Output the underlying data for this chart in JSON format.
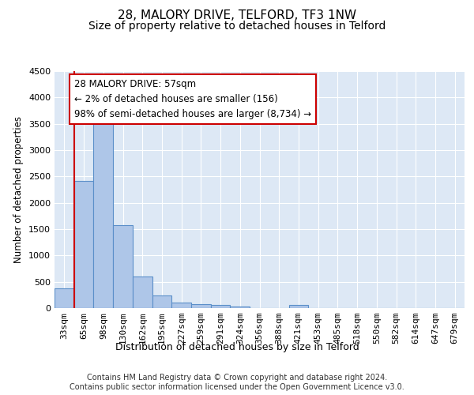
{
  "title_line1": "28, MALORY DRIVE, TELFORD, TF3 1NW",
  "title_line2": "Size of property relative to detached houses in Telford",
  "xlabel": "Distribution of detached houses by size in Telford",
  "ylabel": "Number of detached properties",
  "categories": [
    "33sqm",
    "65sqm",
    "98sqm",
    "130sqm",
    "162sqm",
    "195sqm",
    "227sqm",
    "259sqm",
    "291sqm",
    "324sqm",
    "356sqm",
    "388sqm",
    "421sqm",
    "453sqm",
    "485sqm",
    "518sqm",
    "550sqm",
    "582sqm",
    "614sqm",
    "647sqm",
    "679sqm"
  ],
  "values": [
    370,
    2420,
    3620,
    1580,
    600,
    240,
    110,
    75,
    55,
    30,
    0,
    0,
    60,
    0,
    0,
    0,
    0,
    0,
    0,
    0,
    0
  ],
  "bar_color": "#aec6e8",
  "bar_edge_color": "#5b8fc9",
  "highlight_line_color": "#cc0000",
  "annotation_text": "28 MALORY DRIVE: 57sqm\n← 2% of detached houses are smaller (156)\n98% of semi-detached houses are larger (8,734) →",
  "annotation_box_color": "#cc0000",
  "ylim": [
    0,
    4500
  ],
  "yticks": [
    0,
    500,
    1000,
    1500,
    2000,
    2500,
    3000,
    3500,
    4000,
    4500
  ],
  "background_color": "#dde8f5",
  "footer_text": "Contains HM Land Registry data © Crown copyright and database right 2024.\nContains public sector information licensed under the Open Government Licence v3.0.",
  "title_fontsize": 11,
  "subtitle_fontsize": 10,
  "xlabel_fontsize": 9,
  "ylabel_fontsize": 8.5,
  "tick_fontsize": 8,
  "annotation_fontsize": 8.5,
  "footer_fontsize": 7
}
